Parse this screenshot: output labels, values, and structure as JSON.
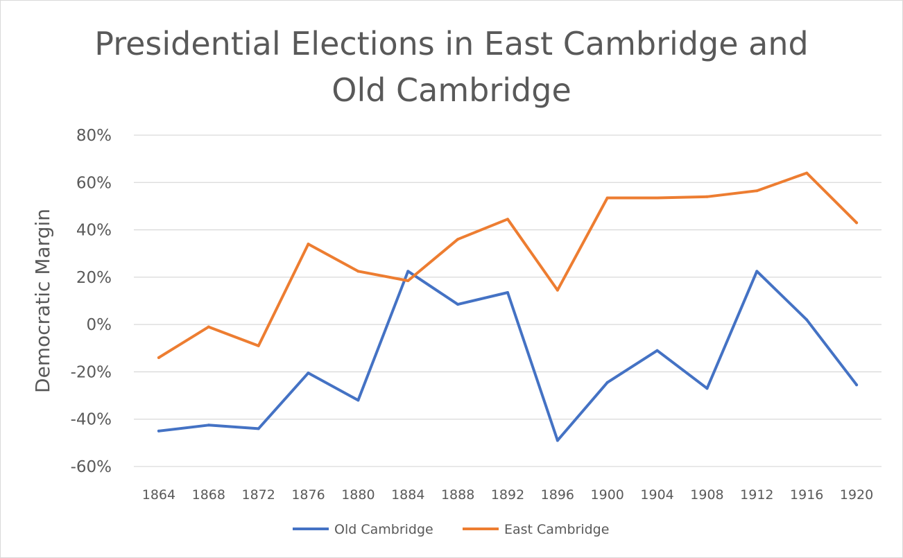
{
  "chart_data": {
    "type": "line",
    "title": "Presidential Elections in East Cambridge and Old Cambridge",
    "title_lines": [
      "Presidential Elections in East Cambridge and",
      "Old Cambridge"
    ],
    "xlabel": "",
    "ylabel": "Democratic Margin",
    "categories": [
      "1864",
      "1868",
      "1872",
      "1876",
      "1880",
      "1884",
      "1888",
      "1892",
      "1896",
      "1900",
      "1904",
      "1908",
      "1912",
      "1916",
      "1920"
    ],
    "y_ticks": [
      80,
      60,
      40,
      20,
      0,
      -20,
      -40,
      -60
    ],
    "y_tick_labels": [
      "80%",
      "60%",
      "40%",
      "20%",
      "0%",
      "-20%",
      "-40%",
      "-60%"
    ],
    "ylim": [
      -60,
      80
    ],
    "y_unit": "%",
    "grid": true,
    "legend_position": "bottom",
    "series": [
      {
        "name": "Old Cambridge",
        "color": "#4472c4",
        "values": [
          -45,
          -42.5,
          -44,
          -20.5,
          -32,
          22.5,
          8.5,
          13.5,
          -49,
          -24.5,
          -11,
          -27,
          22.5,
          2,
          -25.5
        ]
      },
      {
        "name": "East Cambridge",
        "color": "#ed7d31",
        "values": [
          -14,
          -1,
          -9,
          34,
          22.5,
          18.5,
          36,
          44.5,
          14.5,
          53.5,
          53.5,
          54,
          56.5,
          64,
          43
        ]
      }
    ]
  }
}
